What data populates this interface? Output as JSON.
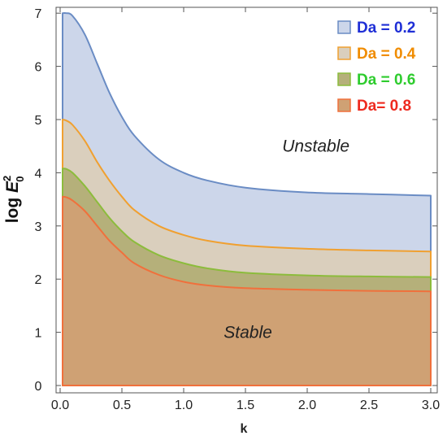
{
  "chart_data": {
    "type": "area",
    "xlabel": "k",
    "ylabel": {
      "prefix": "log ",
      "symbol": "E",
      "superscript": "2",
      "subscript": "0"
    },
    "xlim": [
      0,
      3
    ],
    "ylim": [
      0,
      7
    ],
    "xticks": [
      "0.0",
      "0.5",
      "1.0",
      "1.5",
      "2.0",
      "2.5",
      "3.0"
    ],
    "xtick_values": [
      0,
      0.5,
      1.0,
      1.5,
      2.0,
      2.5,
      3.0
    ],
    "yticks": [
      "0",
      "1",
      "2",
      "3",
      "4",
      "5",
      "6",
      "7"
    ],
    "ytick_values": [
      0,
      1,
      2,
      3,
      4,
      5,
      6,
      7
    ],
    "legend_position": "top-right",
    "annotations": [
      {
        "text": "Unstable",
        "x": 2.07,
        "y": 4.5
      },
      {
        "text": "Stable",
        "x": 1.52,
        "y": 1.0
      }
    ],
    "series": [
      {
        "name": "Da = 0.2",
        "color": "#6a8cc4",
        "fill": "#ccd6ea",
        "legend_color": "#1f2fd6",
        "x": [
          0.02,
          0.05,
          0.1,
          0.2,
          0.3,
          0.4,
          0.5,
          0.6,
          0.8,
          1.0,
          1.2,
          1.5,
          2.0,
          2.5,
          3.0
        ],
        "y": [
          7.0,
          7.0,
          6.95,
          6.6,
          6.05,
          5.5,
          5.05,
          4.7,
          4.25,
          4.0,
          3.85,
          3.72,
          3.63,
          3.6,
          3.57
        ]
      },
      {
        "name": "Da = 0.4",
        "color": "#f0a030",
        "fill": "#dacfbd",
        "legend_color": "#f08c00",
        "x": [
          0.02,
          0.05,
          0.1,
          0.2,
          0.3,
          0.4,
          0.5,
          0.6,
          0.8,
          1.0,
          1.2,
          1.5,
          2.0,
          2.5,
          3.0
        ],
        "y": [
          5.0,
          4.98,
          4.9,
          4.6,
          4.2,
          3.85,
          3.55,
          3.3,
          3.0,
          2.83,
          2.72,
          2.63,
          2.57,
          2.54,
          2.52
        ]
      },
      {
        "name": "Da = 0.6",
        "color": "#8cbc3c",
        "fill": "#b5b07a",
        "legend_color": "#2ecc2e",
        "x": [
          0.02,
          0.05,
          0.1,
          0.2,
          0.3,
          0.4,
          0.5,
          0.6,
          0.8,
          1.0,
          1.2,
          1.5,
          2.0,
          2.5,
          3.0
        ],
        "y": [
          4.08,
          4.07,
          4.0,
          3.75,
          3.45,
          3.15,
          2.9,
          2.7,
          2.45,
          2.3,
          2.2,
          2.12,
          2.07,
          2.05,
          2.04
        ]
      },
      {
        "name": "Da= 0.8",
        "color": "#f0703c",
        "fill": "#cfa174",
        "legend_color": "#ee2a1f",
        "x": [
          0.02,
          0.05,
          0.1,
          0.2,
          0.3,
          0.4,
          0.5,
          0.6,
          0.8,
          1.0,
          1.2,
          1.5,
          2.0,
          2.5,
          3.0
        ],
        "y": [
          3.55,
          3.54,
          3.48,
          3.28,
          3.0,
          2.72,
          2.5,
          2.3,
          2.08,
          1.95,
          1.88,
          1.83,
          1.8,
          1.78,
          1.77
        ]
      }
    ]
  }
}
